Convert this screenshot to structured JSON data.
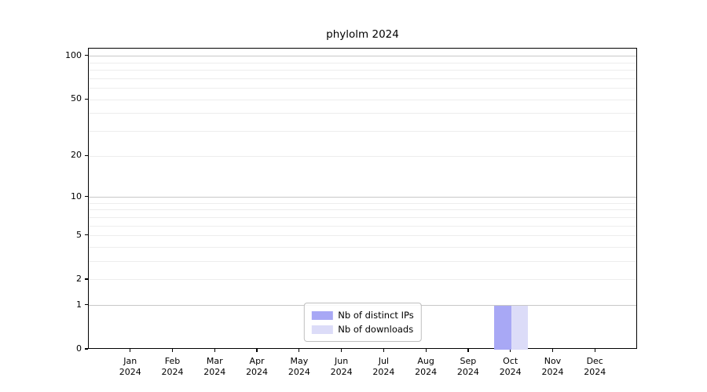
{
  "figure": {
    "background": "#ffffff",
    "axis_color": "#000000"
  },
  "chart_data": {
    "type": "bar",
    "title": "phylolm 2024",
    "xlabel": "",
    "ylabel": "",
    "year_label": "2024",
    "categories": [
      "Jan",
      "Feb",
      "Mar",
      "Apr",
      "May",
      "Jun",
      "Jul",
      "Aug",
      "Sep",
      "Oct",
      "Nov",
      "Dec"
    ],
    "series": [
      {
        "name": "Nb of distinct IPs",
        "color": "#a8a8f5",
        "values": [
          0,
          0,
          0,
          0,
          0,
          0,
          0,
          0,
          0,
          1,
          0,
          0
        ]
      },
      {
        "name": "Nb of downloads",
        "color": "#dcdcf8",
        "values": [
          0,
          0,
          0,
          0,
          0,
          0,
          0,
          0,
          0,
          1,
          0,
          0
        ]
      }
    ],
    "yscale": "log1p",
    "ylim": [
      0,
      113
    ],
    "yticks_labeled": [
      0,
      1,
      2,
      5,
      10,
      20,
      50,
      100
    ],
    "major_gridlines": [
      1,
      10,
      100
    ],
    "minor_gridlines": [
      2,
      3,
      4,
      5,
      6,
      7,
      8,
      9,
      20,
      30,
      40,
      50,
      60,
      70,
      80,
      90
    ],
    "grid_color_major": "#c8c8c8",
    "grid_color_minor": "#ededed",
    "grid": "horizontal",
    "legend_position": "lower center",
    "bar_width_fraction": 0.4
  }
}
